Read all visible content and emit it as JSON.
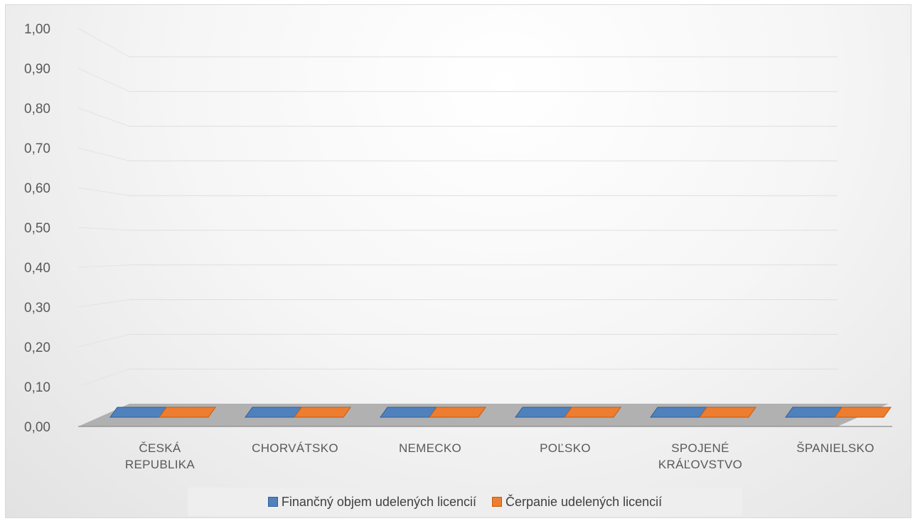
{
  "chart_data": {
    "type": "bar",
    "categories": [
      "ČESKÁ REPUBLIKA",
      "CHORVÁTSKO",
      "NEMECKO",
      "POĽSKO",
      "SPOJENÉ KRÁĽOVSTVO",
      "ŠPANIELSKO"
    ],
    "category_lines": [
      [
        "ČESKÁ",
        "REPUBLIKA"
      ],
      [
        "CHORVÁTSKO"
      ],
      [
        "NEMECKO"
      ],
      [
        "POĽSKO"
      ],
      [
        "SPOJENÉ",
        "KRÁĽOVSTVO"
      ],
      [
        "ŠPANIELSKO"
      ]
    ],
    "series": [
      {
        "name": "Finančný objem udelených licencií",
        "values": [
          0,
          0,
          0,
          0,
          0,
          0
        ],
        "color": "#4f81bd",
        "border": "#2f5f97"
      },
      {
        "name": "Čerpanie udelených licencií",
        "values": [
          0,
          0,
          0,
          0,
          0,
          0
        ],
        "color": "#ed7d31",
        "border": "#c55a11"
      }
    ],
    "y_ticks": [
      "0,00",
      "0,10",
      "0,20",
      "0,30",
      "0,40",
      "0,50",
      "0,60",
      "0,70",
      "0,80",
      "0,90",
      "1,00"
    ],
    "ylim": [
      0,
      1
    ],
    "grid": true,
    "legend_position": "bottom",
    "style": "3d-clustered-column"
  }
}
